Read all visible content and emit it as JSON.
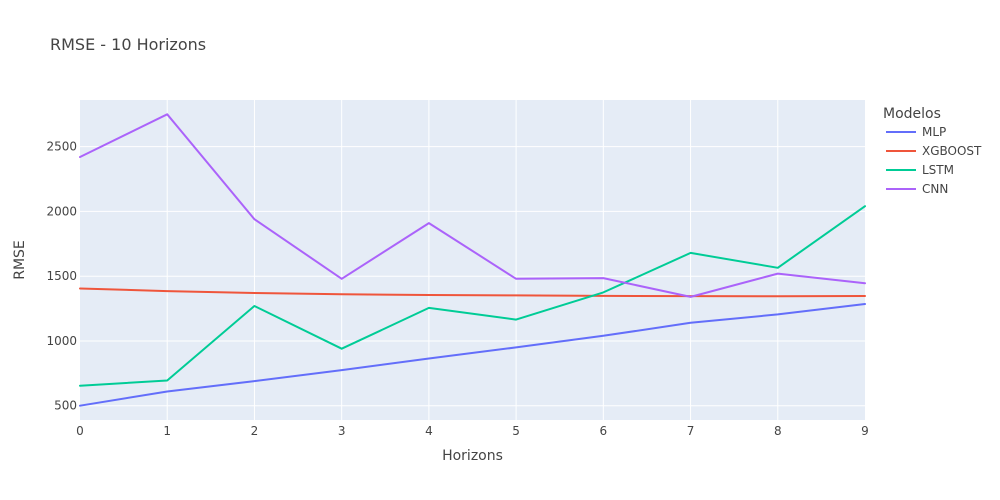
{
  "chart_data": {
    "type": "line",
    "title": "RMSE - 10 Horizons",
    "xlabel": "Horizons",
    "ylabel": "RMSE",
    "x": [
      0,
      1,
      2,
      3,
      4,
      5,
      6,
      7,
      8,
      9
    ],
    "xlim": [
      0,
      9
    ],
    "ylim": [
      390,
      2860
    ],
    "x_ticks": [
      0,
      1,
      2,
      3,
      4,
      5,
      6,
      7,
      8,
      9
    ],
    "y_ticks": [
      500,
      1000,
      1500,
      2000,
      2500
    ],
    "grid": true,
    "plot_background": "#E5ECF6",
    "legend": {
      "title": "Modelos",
      "placement": "top-right-outside"
    },
    "series": [
      {
        "name": "MLP",
        "color": "#636EFA",
        "values": [
          500,
          610,
          690,
          775,
          865,
          950,
          1040,
          1140,
          1205,
          1285
        ]
      },
      {
        "name": "XGBOOST",
        "color": "#EF553B",
        "values": [
          1405,
          1385,
          1370,
          1360,
          1355,
          1352,
          1348,
          1346,
          1345,
          1347
        ]
      },
      {
        "name": "LSTM",
        "color": "#00CC96",
        "values": [
          655,
          695,
          1270,
          940,
          1255,
          1165,
          1375,
          1680,
          1565,
          2040
        ]
      },
      {
        "name": "CNN",
        "color": "#AB63FA",
        "values": [
          2420,
          2750,
          1940,
          1480,
          1910,
          1480,
          1485,
          1340,
          1520,
          1445
        ]
      }
    ]
  }
}
